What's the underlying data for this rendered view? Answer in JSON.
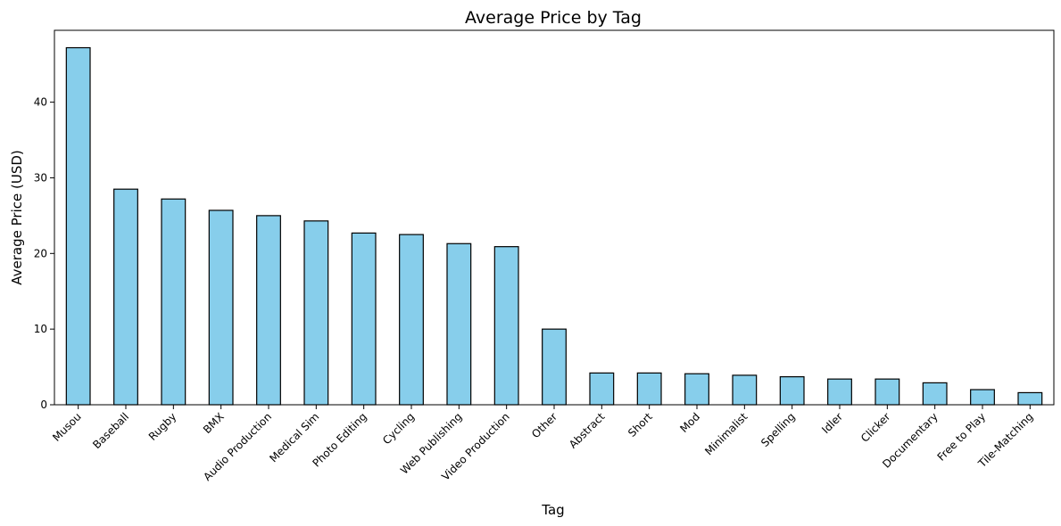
{
  "chart_data": {
    "type": "bar",
    "title": "Average Price by Tag",
    "xlabel": "Tag",
    "ylabel": "Average Price (USD)",
    "categories": [
      "Musou",
      "Baseball",
      "Rugby",
      "BMX",
      "Audio Production",
      "Medical Sim",
      "Photo Editing",
      "Cycling",
      "Web Publishing",
      "Video Production",
      "Other",
      "Abstract",
      "Short",
      "Mod",
      "Minimalist",
      "Spelling",
      "Idler",
      "Clicker",
      "Documentary",
      "Free to Play",
      "Tile-Matching"
    ],
    "values": [
      47.2,
      28.5,
      27.2,
      25.7,
      25.0,
      24.3,
      22.7,
      22.5,
      21.3,
      20.9,
      10.0,
      4.2,
      4.2,
      4.1,
      3.9,
      3.7,
      3.4,
      3.4,
      2.9,
      2.0,
      1.6
    ],
    "ylim": [
      0,
      49.5
    ],
    "yticks": [
      0,
      10,
      20,
      30,
      40
    ],
    "bar_color": "#87ceeb",
    "edge_color": "#000000",
    "grid": false,
    "legend": "none"
  }
}
